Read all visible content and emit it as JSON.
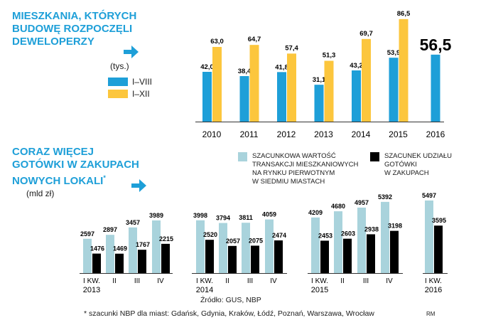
{
  "top": {
    "title_lines": [
      "MIESZKANIA, KTÓRYCH",
      "BUDOWĘ ROZPOCZĘLI",
      "DEWELOPERZY"
    ],
    "unit": "(tys.)",
    "legend": [
      {
        "label": "I–VIII",
        "color": "#1e9fd8"
      },
      {
        "label": "I–XII",
        "color": "#fcc63d"
      }
    ]
  },
  "bottom": {
    "title_lines": [
      "CORAZ WIĘCEJ",
      "GOTÓWKI W ZAKUPACH",
      "NOWYCH LOKALI"
    ],
    "title_mark": "*",
    "unit": "(mld zł)",
    "legend": [
      {
        "label": "SZACUNKOWA WARTOŚĆ TRANSAKCJI MIESZKANIOWYCH NA RYNKU PIERWOTNYM W SIEDMIU MIASTACH",
        "lines": [
          "SZACUNKOWA WARTOŚĆ",
          "TRANSAKCJI MIESZKANIOWYCH",
          "NA RYNKU PIERWOTNYM",
          "W SIEDMIU MIASTACH"
        ],
        "color": "#a9d3dc"
      },
      {
        "label": "SZACUNEK UDZIAŁU GOTÓWKI W ZAKUPACH",
        "lines": [
          "SZACUNEK UDZIAŁU",
          "GOTÓWKI",
          "W ZAKUPACH"
        ],
        "color": "#000000"
      }
    ]
  },
  "colors": {
    "accent": "#1e9fd8",
    "yellow": "#fcc63d",
    "light_blue": "#a9d3dc",
    "black": "#000000"
  },
  "chart_data": [
    {
      "type": "bar",
      "title": "MIESZKANIA, KTÓRYCH BUDOWĘ ROZPOCZĘLI DEWELOPERZY",
      "ylabel": "(tys.)",
      "categories": [
        "2010",
        "2011",
        "2012",
        "2013",
        "2014",
        "2015",
        "2016"
      ],
      "series": [
        {
          "name": "I–VIII",
          "values": [
            42.0,
            38.4,
            41.8,
            31.1,
            43.2,
            53.9,
            56.5
          ],
          "labels": [
            "42,0",
            "38,4",
            "41,8",
            "31,1",
            "43,2",
            "53,9",
            "56,5"
          ]
        },
        {
          "name": "I–XII",
          "values": [
            63.0,
            64.7,
            57.4,
            51.3,
            69.7,
            86.5,
            null
          ],
          "labels": [
            "63,0",
            "64,7",
            "57,4",
            "51,3",
            "69,7",
            "86,5",
            null
          ]
        }
      ],
      "ylim": [
        0,
        90
      ],
      "legend": "left",
      "grid": false
    },
    {
      "type": "bar",
      "title": "CORAZ WIĘCEJ GOTÓWKI W ZAKUPACH NOWYCH LOKALI*",
      "ylabel": "(mld zł)",
      "categories": [
        "I KW.",
        "II",
        "III",
        "IV",
        "I KW.",
        "II",
        "III",
        "IV",
        "I KW.",
        "II",
        "III",
        "IV",
        "I KW."
      ],
      "year_labels": [
        "2013",
        "2014",
        "2015",
        "2016"
      ],
      "series": [
        {
          "name": "SZACUNKOWA WARTOŚĆ TRANSAKCJI MIESZKANIOWYCH NA RYNKU PIERWOTNYM W SIEDMIU MIASTACH",
          "values": [
            2597,
            2897,
            3457,
            3989,
            3998,
            3794,
            3811,
            4059,
            4209,
            4680,
            4957,
            5392,
            5497
          ]
        },
        {
          "name": "SZACUNEK UDZIAŁU GOTÓWKI W ZAKUPACH",
          "values": [
            1476,
            1469,
            1767,
            2215,
            2520,
            2057,
            2075,
            2474,
            2453,
            2603,
            2938,
            3198,
            3595
          ]
        }
      ],
      "ylim": [
        0,
        5600
      ],
      "legend": "top-right",
      "grid": false
    }
  ],
  "footer": {
    "source": "Źródło: GUS, NBP",
    "note": "* szacunki NBP dla miast: Gdańsk, Gdynia, Kraków, Łódź, Poznań, Warszawa, Wrocław",
    "initials": "RM"
  }
}
